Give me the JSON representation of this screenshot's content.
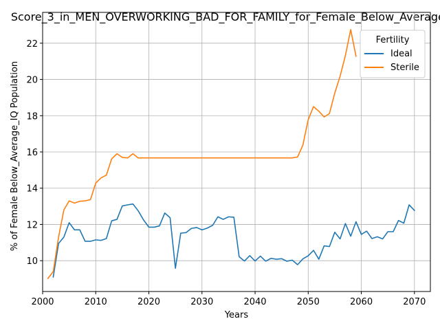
{
  "chart_data": {
    "type": "line",
    "title": "Score_3_in_MEN_OVERWORKING_BAD_FOR_FAMILY_for_Female_Below_Average_IQ",
    "xlabel": "Years",
    "ylabel": "% of Female Below_Average_IQ Population",
    "xlim": [
      2000,
      2073
    ],
    "ylim": [
      8.3,
      23.7
    ],
    "xticks": [
      2000,
      2010,
      2020,
      2030,
      2040,
      2050,
      2060,
      2070
    ],
    "yticks": [
      10,
      12,
      14,
      16,
      18,
      20,
      22
    ],
    "grid": true,
    "legend": {
      "title": "Fertility",
      "placement": "top-right"
    },
    "series": [
      {
        "name": "Ideal",
        "color": "#1f77b4",
        "x": [
          2002,
          2003,
          2004,
          2005,
          2006,
          2007,
          2008,
          2009,
          2010,
          2011,
          2012,
          2013,
          2014,
          2015,
          2016,
          2017,
          2018,
          2019,
          2020,
          2021,
          2022,
          2023,
          2024,
          2025,
          2026,
          2027,
          2028,
          2029,
          2030,
          2031,
          2032,
          2033,
          2034,
          2035,
          2036,
          2037,
          2038,
          2039,
          2040,
          2041,
          2042,
          2043,
          2044,
          2045,
          2046,
          2047,
          2048,
          2049,
          2050,
          2051,
          2052,
          2053,
          2054,
          2055,
          2056,
          2057,
          2058,
          2059,
          2060,
          2061,
          2062,
          2063,
          2064,
          2065,
          2066,
          2067,
          2068,
          2069,
          2070
        ],
        "values": [
          9.1,
          10.95,
          11.3,
          12.1,
          11.7,
          11.7,
          11.07,
          11.07,
          11.15,
          11.12,
          11.22,
          12.2,
          12.28,
          13.02,
          13.08,
          13.13,
          12.75,
          12.25,
          11.85,
          11.85,
          11.92,
          12.63,
          12.37,
          9.58,
          11.52,
          11.55,
          11.78,
          11.83,
          11.7,
          11.8,
          11.95,
          12.42,
          12.28,
          12.42,
          12.4,
          10.22,
          9.98,
          10.28,
          9.98,
          10.25,
          9.97,
          10.13,
          10.08,
          10.11,
          9.97,
          10.03,
          9.78,
          10.1,
          10.27,
          10.57,
          10.08,
          10.82,
          10.78,
          11.57,
          11.2,
          12.05,
          11.35,
          12.15,
          11.45,
          11.63,
          11.22,
          11.32,
          11.2,
          11.6,
          11.6,
          12.22,
          12.07,
          13.08,
          12.77
        ]
      },
      {
        "name": "Sterile",
        "color": "#ff7f0e",
        "x": [
          2001,
          2002,
          2003,
          2004,
          2005,
          2006,
          2007,
          2008,
          2009,
          2010,
          2011,
          2012,
          2013,
          2014,
          2015,
          2016,
          2017,
          2018,
          2019,
          2020,
          2021,
          2022,
          2023,
          2024,
          2025,
          2026,
          2027,
          2028,
          2029,
          2030,
          2031,
          2032,
          2033,
          2034,
          2035,
          2036,
          2037,
          2038,
          2039,
          2040,
          2041,
          2042,
          2043,
          2044,
          2045,
          2046,
          2047,
          2048,
          2049,
          2050,
          2051,
          2052,
          2053,
          2054,
          2055,
          2056,
          2057,
          2058,
          2059
        ],
        "values": [
          9.02,
          9.4,
          11.3,
          12.8,
          13.3,
          13.18,
          13.28,
          13.3,
          13.37,
          14.28,
          14.57,
          14.72,
          15.62,
          15.9,
          15.7,
          15.67,
          15.9,
          15.67,
          15.67,
          15.67,
          15.67,
          15.67,
          15.67,
          15.67,
          15.67,
          15.67,
          15.67,
          15.67,
          15.67,
          15.67,
          15.67,
          15.67,
          15.67,
          15.67,
          15.67,
          15.67,
          15.67,
          15.67,
          15.67,
          15.67,
          15.67,
          15.67,
          15.67,
          15.67,
          15.67,
          15.67,
          15.67,
          15.72,
          16.38,
          17.78,
          18.5,
          18.25,
          17.93,
          18.12,
          19.25,
          20.17,
          21.32,
          22.75,
          21.28
        ]
      }
    ]
  }
}
